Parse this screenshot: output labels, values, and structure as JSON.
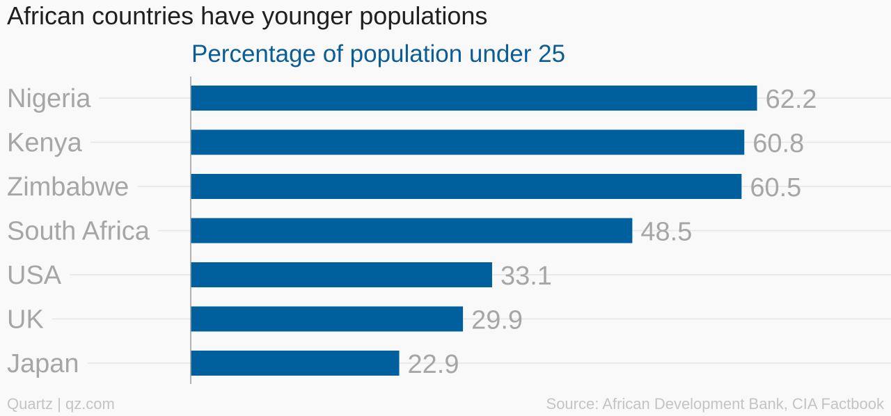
{
  "title": "African countries have younger populations",
  "subtitle": "Percentage of population under 25",
  "credit": "Quartz | qz.com",
  "source": "Source: African Development Bank, CIA Factbook",
  "colors": {
    "bar": "#00609e",
    "category_label": "#a6a6a6",
    "value_label": "#a6a6a6",
    "gridline": "#e6e6e6",
    "axis": "#9a9a9a"
  },
  "chart_data": {
    "type": "bar",
    "orientation": "horizontal",
    "categories": [
      "Nigeria",
      "Kenya",
      "Zimbabwe",
      "South Africa",
      "USA",
      "UK",
      "Japan"
    ],
    "values": [
      62.2,
      60.8,
      60.5,
      48.5,
      33.1,
      29.9,
      22.9
    ],
    "value_labels": [
      "62.2",
      "60.8",
      "60.5",
      "48.5",
      "33.1",
      "29.9",
      "22.9"
    ],
    "xlim": [
      0,
      70
    ],
    "grid": true
  }
}
